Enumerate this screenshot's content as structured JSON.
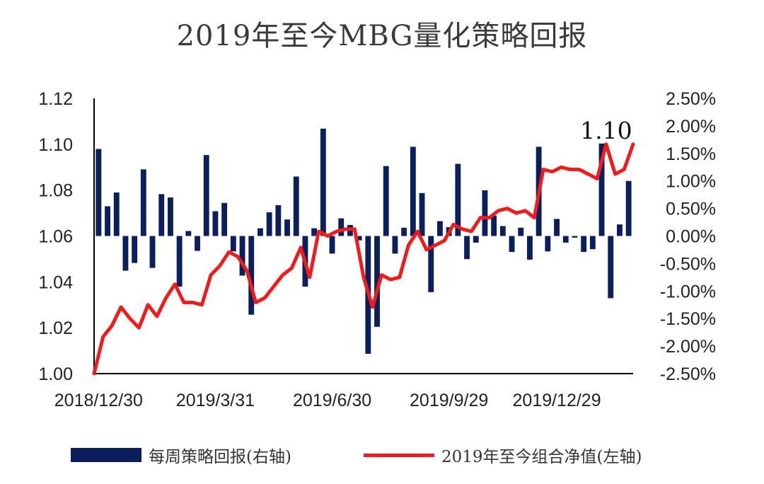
{
  "title": "2019年至今MBG量化策略回报",
  "colors": {
    "bar": "#0b1f5c",
    "line": "#ee1c1c",
    "axis": "#000000"
  },
  "legend": {
    "bar_label": "每周策略回报(右轴)",
    "line_label": "2019年至今组合净值(左轴)"
  },
  "chart_data": {
    "type": "bar+line",
    "title": "2019年至今MBG量化策略回报",
    "left_axis": {
      "ylim": [
        1.0,
        1.12
      ],
      "ticks": [
        "1.00",
        "1.02",
        "1.04",
        "1.06",
        "1.08",
        "1.10",
        "1.12"
      ],
      "series": "2019年至今组合净值"
    },
    "right_axis": {
      "ylim": [
        -2.5,
        2.5
      ],
      "unit": "%",
      "ticks": [
        "-2.50%",
        "-2.00%",
        "-1.50%",
        "-1.00%",
        "-0.50%",
        "0.00%",
        "0.50%",
        "1.00%",
        "1.50%",
        "2.00%",
        "2.50%"
      ],
      "series": "每周策略回报"
    },
    "x_tick_labels": [
      "2018/12/30",
      "2019/3/31",
      "2019/6/30",
      "2019/9/29",
      "2019/12/29"
    ],
    "x_tick_week_index": [
      0,
      13,
      26,
      39,
      51
    ],
    "annotation": {
      "text": "1.10",
      "week_index": 57
    },
    "series": [
      {
        "name": "每周策略回报",
        "axis": "right",
        "type": "bar",
        "values": [
          1.58,
          0.54,
          0.79,
          -0.63,
          -0.49,
          1.21,
          -0.58,
          0.76,
          0.7,
          -0.92,
          0.09,
          -0.27,
          1.47,
          0.45,
          0.6,
          -0.28,
          -0.72,
          -1.43,
          0.14,
          0.43,
          0.56,
          0.3,
          1.08,
          -0.92,
          0.14,
          1.95,
          -0.32,
          0.32,
          0.2,
          -0.08,
          -2.14,
          -1.65,
          1.27,
          -0.32,
          0.15,
          1.62,
          0.78,
          -1.02,
          0.27,
          0.16,
          1.31,
          -0.42,
          -0.12,
          0.83,
          0.37,
          0.18,
          -0.29,
          0.15,
          -0.43,
          1.62,
          -0.28,
          0.31,
          -0.12,
          -0.03,
          -0.29,
          -0.24,
          1.68,
          -1.13,
          0.21,
          1.0
        ]
      },
      {
        "name": "2019年至今组合净值",
        "axis": "left",
        "type": "line",
        "values": [
          1.0,
          1.016,
          1.021,
          1.029,
          1.024,
          1.02,
          1.03,
          1.025,
          1.033,
          1.039,
          1.031,
          1.031,
          1.03,
          1.043,
          1.047,
          1.053,
          1.051,
          1.045,
          1.031,
          1.033,
          1.038,
          1.043,
          1.046,
          1.055,
          1.042,
          1.062,
          1.06,
          1.062,
          1.063,
          1.063,
          1.042,
          1.029,
          1.043,
          1.041,
          1.042,
          1.056,
          1.062,
          1.054,
          1.056,
          1.058,
          1.065,
          1.063,
          1.062,
          1.068,
          1.068,
          1.071,
          1.072,
          1.07,
          1.071,
          1.068,
          1.089,
          1.088,
          1.09,
          1.089,
          1.089,
          1.087,
          1.085,
          1.1,
          1.087,
          1.089,
          1.1
        ]
      }
    ]
  }
}
